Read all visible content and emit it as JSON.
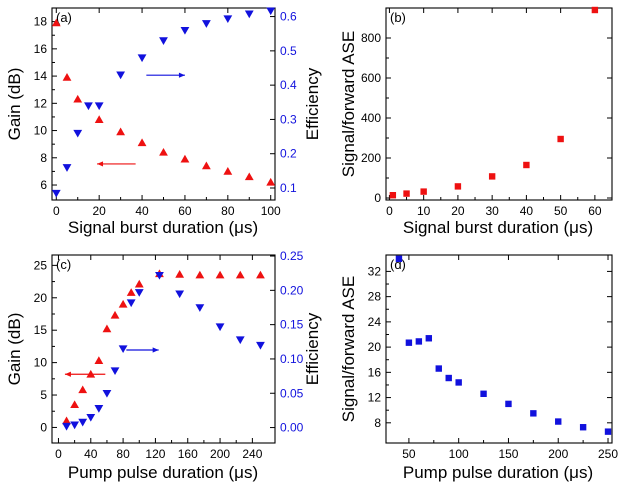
{
  "figure": {
    "colors": {
      "red": "#ee1111",
      "blue": "#1111dd",
      "axis": "#000000"
    }
  },
  "chart_data": [
    {
      "panel": "(a)",
      "type": "scatter",
      "xlabel": "Signal burst duration (μs)",
      "ylabel": "Gain (dB)",
      "y2label": "Efficiency",
      "xlim": [
        -2,
        102
      ],
      "ylim": [
        4.9,
        19
      ],
      "y2lim": [
        0.065,
        0.625
      ],
      "xticks": [
        0,
        20,
        40,
        60,
        80,
        100
      ],
      "yticks": [
        6,
        8,
        10,
        12,
        14,
        16,
        18
      ],
      "y2ticks": [
        0.1,
        0.2,
        0.3,
        0.4,
        0.5,
        0.6
      ],
      "series": [
        {
          "axis": "left",
          "color": "red",
          "marker": "triangle-up",
          "x": [
            0,
            5,
            10,
            20,
            30,
            40,
            50,
            60,
            70,
            80,
            90,
            100
          ],
          "y": [
            17.9,
            13.9,
            12.3,
            10.8,
            9.9,
            9.1,
            8.4,
            7.9,
            7.4,
            7.0,
            6.6,
            6.2
          ]
        },
        {
          "axis": "right",
          "color": "blue",
          "marker": "triangle-down",
          "x": [
            0,
            5,
            10,
            15,
            20,
            30,
            40,
            50,
            60,
            70,
            80,
            90,
            100
          ],
          "y": [
            0.085,
            0.16,
            0.26,
            0.34,
            0.34,
            0.43,
            0.48,
            0.53,
            0.56,
            0.58,
            0.594,
            0.608,
            0.617
          ]
        }
      ],
      "arrows": [
        {
          "direction": "left",
          "color": "red",
          "x_from": 37,
          "x_to": 19,
          "y": 7.55,
          "axis": "left"
        },
        {
          "direction": "right",
          "color": "blue",
          "x_from": 42,
          "x_to": 60,
          "y": 0.429,
          "axis": "right"
        }
      ]
    },
    {
      "panel": "(b)",
      "type": "scatter",
      "xlabel": "Signal burst duration (μs)",
      "ylabel": "Signal/forward ASE",
      "xlim": [
        -1,
        65
      ],
      "ylim": [
        -10,
        950
      ],
      "xticks": [
        0,
        10,
        20,
        30,
        40,
        50,
        60
      ],
      "yticks": [
        0,
        200,
        400,
        600,
        800
      ],
      "series": [
        {
          "color": "red",
          "marker": "square",
          "x": [
            1,
            5,
            10,
            20,
            30,
            40,
            50,
            60
          ],
          "y": [
            14,
            22,
            32,
            58,
            108,
            165,
            295,
            940
          ]
        }
      ]
    },
    {
      "panel": "(c)",
      "type": "scatter",
      "xlabel": "Pump pulse duration (μs)",
      "ylabel": "Gain (dB)",
      "y2label": "Efficiency",
      "xlim": [
        -8,
        268
      ],
      "ylim": [
        -2.4,
        26.6
      ],
      "y2lim": [
        -0.0225,
        0.2515
      ],
      "xticks": [
        0,
        40,
        80,
        120,
        160,
        200,
        240
      ],
      "yticks": [
        0,
        5,
        10,
        15,
        20,
        25
      ],
      "y2ticks": [
        0.0,
        0.05,
        0.1,
        0.15,
        0.2,
        0.25
      ],
      "y2tick_labels": [
        "0.00",
        "0.05",
        "0.10",
        "0.15",
        "0.20",
        "0.25"
      ],
      "series": [
        {
          "axis": "left",
          "color": "red",
          "marker": "triangle-up",
          "x": [
            10,
            20,
            30,
            40,
            50,
            60,
            70,
            80,
            90,
            100,
            125,
            150,
            175,
            200,
            225,
            250
          ],
          "y": [
            1.0,
            3.5,
            5.8,
            8.2,
            10.3,
            15.2,
            17.3,
            19.0,
            20.8,
            22.1,
            23.7,
            23.6,
            23.5,
            23.5,
            23.5,
            23.5
          ]
        },
        {
          "axis": "right",
          "color": "blue",
          "marker": "triangle-down",
          "x": [
            10,
            20,
            30,
            40,
            50,
            60,
            70,
            80,
            90,
            100,
            125,
            150,
            175,
            200,
            225,
            250
          ],
          "y": [
            0.002,
            0.004,
            0.008,
            0.015,
            0.028,
            0.05,
            0.083,
            0.115,
            0.182,
            0.197,
            0.222,
            0.195,
            0.175,
            0.147,
            0.128,
            0.12
          ]
        }
      ],
      "arrows": [
        {
          "direction": "left",
          "color": "red",
          "x_from": 58,
          "x_to": 8,
          "y": 8.2,
          "axis": "left"
        },
        {
          "direction": "right",
          "color": "blue",
          "x_from": 84,
          "x_to": 124,
          "y": 0.113,
          "axis": "right"
        }
      ]
    },
    {
      "panel": "(d)",
      "type": "scatter",
      "xlabel": "Pump pulse duration (μs)",
      "ylabel": "Signal/forward ASE",
      "xlim": [
        27,
        254
      ],
      "ylim": [
        4.8,
        34.6
      ],
      "xticks": [
        50,
        100,
        150,
        200,
        250
      ],
      "yticks": [
        8,
        12,
        16,
        20,
        24,
        28,
        32
      ],
      "series": [
        {
          "color": "blue",
          "marker": "square",
          "x": [
            40,
            50,
            60,
            70,
            80,
            90,
            100,
            125,
            150,
            175,
            200,
            225,
            250
          ],
          "y": [
            34.0,
            20.7,
            20.9,
            21.4,
            16.6,
            15.1,
            14.4,
            12.6,
            11.0,
            9.5,
            8.2,
            7.3,
            6.6
          ]
        }
      ]
    }
  ]
}
